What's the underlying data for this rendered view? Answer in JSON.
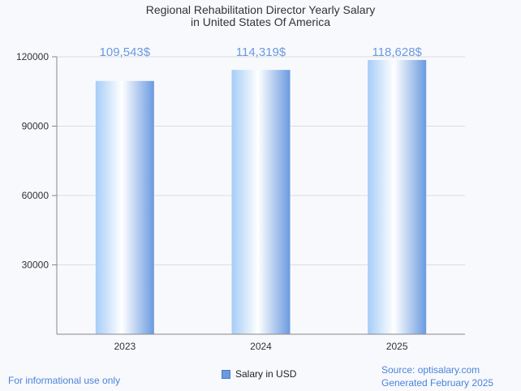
{
  "chart_data": {
    "type": "bar",
    "title_lines": [
      "Regional Rehabilitation Director Yearly Salary",
      "in United States Of America"
    ],
    "categories": [
      "2023",
      "2024",
      "2025"
    ],
    "series": [
      {
        "name": "Salary in USD",
        "values": [
          109543,
          114319,
          118628
        ]
      }
    ],
    "data_labels": [
      "109,543$",
      "114,319$",
      "118,628$"
    ],
    "y_ticks": [
      30000,
      60000,
      90000,
      120000
    ],
    "ylim": [
      0,
      120000
    ],
    "grid": true,
    "legend_position": "bottom-center",
    "bar_gradient": [
      "#a6cdf7",
      "#ffffff",
      "#6a9ae0"
    ]
  },
  "legend": {
    "label": "Salary in USD"
  },
  "footer": {
    "left": "For informational use only",
    "source": "Source: optisalary.com",
    "generated": "Generated February 2025"
  }
}
